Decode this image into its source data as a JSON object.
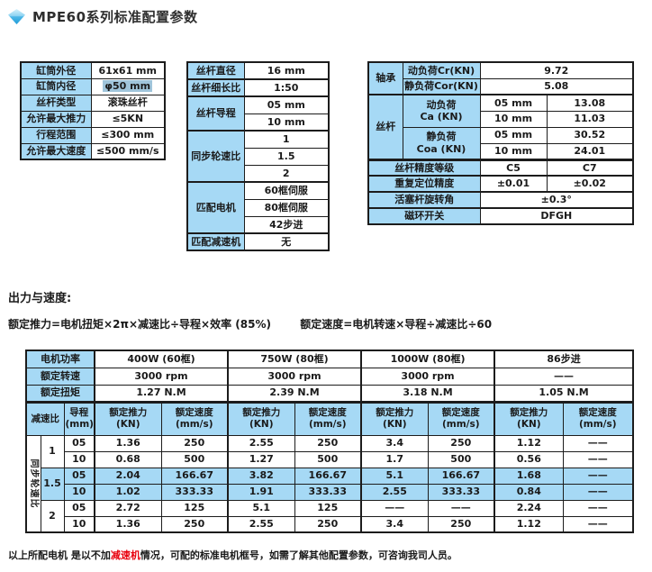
{
  "colors": {
    "header_blue": "#a6d9f5",
    "row_highlight": "#a6d9f5",
    "selection_highlight": "#a0c5db",
    "note_red": "#e8000d",
    "border": "#1c1c1c",
    "ink": "#1a1a1a",
    "diamond_top": "#cdeefb",
    "diamond_bottom": "#1f9cd8"
  },
  "header": {
    "title": "MPE60系列标准配置参数",
    "icon": "diamond-icon"
  },
  "cylinder_table": {
    "rows": [
      {
        "label": "缸筒外径",
        "value": "61x61 mm"
      },
      {
        "label": "缸筒内径",
        "value": "φ50 mm"
      },
      {
        "label": "丝杆类型",
        "value": "滚珠丝杆"
      },
      {
        "label": "允许最大推力",
        "value": "≤5KN"
      },
      {
        "label": "行程范围",
        "value": "≤300 mm"
      },
      {
        "label": "允许最大速度",
        "value": "≤500 mm/s"
      }
    ]
  },
  "screw_table": {
    "diameter_label": "丝杆直径",
    "diameter_value": "16 mm",
    "slenderness_label": "丝杆细长比",
    "slenderness_value": "1:50",
    "lead_label": "丝杆导程",
    "lead_values": [
      "05 mm",
      "10 mm"
    ],
    "ratio_label": "同步轮速比",
    "ratio_values": [
      "1",
      "1.5",
      "2"
    ],
    "motor_label": "匹配电机",
    "motor_values": [
      "60框伺服",
      "80框伺服",
      "42步进"
    ],
    "reducer_label": "匹配减速机",
    "reducer_value": "无"
  },
  "load_table": {
    "bearing_label": "轴承",
    "cr_label": "动负荷Cr(KN)",
    "cr_value": "9.72",
    "cor_label": "静负荷Cor(KN)",
    "cor_value": "5.08",
    "screw_label": "丝杆",
    "ca_label_l1": "动负荷",
    "ca_label_l2": "Ca (KN)",
    "ca_rows": [
      {
        "lead": "05 mm",
        "value": "13.08"
      },
      {
        "lead": "10 mm",
        "value": "11.03"
      }
    ],
    "coa_label_l1": "静负荷",
    "coa_label_l2": "Coa (KN)",
    "coa_rows": [
      {
        "lead": "05 mm",
        "value": "30.52"
      },
      {
        "lead": "10 mm",
        "value": "24.01"
      }
    ],
    "accuracy_label": "丝杆精度等级",
    "accuracy_values": [
      "C5",
      "C7"
    ],
    "repeat_label": "重复定位精度",
    "repeat_values": [
      "±0.01",
      "±0.02"
    ],
    "rotation_label": "活塞杆旋转角",
    "rotation_value": "±0.3°",
    "switch_label": "磁环开关",
    "switch_value": "DFGH"
  },
  "output_section": {
    "heading": "出力与速度:",
    "formula_thrust": "额定推力=电机扭矩×2π×减速比÷导程×效率 (85%)",
    "formula_speed": "额定速度=电机转速×导程÷减速比÷60"
  },
  "performance_table": {
    "power_label": "电机功率",
    "rated_speed_label": "额定转速",
    "rated_torque_label": "额定扭矩",
    "motors": [
      {
        "power": "400W (60框)",
        "rated_speed": "3000 rpm",
        "rated_torque": "1.27 N.M"
      },
      {
        "power": "750W (80框)",
        "rated_speed": "3000 rpm",
        "rated_torque": "2.39 N.M"
      },
      {
        "power": "1000W (80框)",
        "rated_speed": "3000 rpm",
        "rated_torque": "3.18 N.M"
      },
      {
        "power": "86步进",
        "rated_speed": "——",
        "rated_torque": "1.05 N.M"
      }
    ],
    "header": {
      "ratio": "减速比",
      "lead_l1": "导程",
      "lead_l2": "(mm)",
      "thrust_l1": "额定推力",
      "thrust_l2": "(KN)",
      "speed_l1": "额定速度",
      "speed_l2": "(mm/s)"
    },
    "side_label": "同步轮速比",
    "groups": [
      {
        "ratio": "1",
        "highlight": false,
        "rows": [
          {
            "lead": "05",
            "cells": [
              "1.36",
              "250",
              "2.55",
              "250",
              "3.4",
              "250",
              "1.12",
              "——"
            ]
          },
          {
            "lead": "10",
            "cells": [
              "0.68",
              "500",
              "1.27",
              "500",
              "1.7",
              "500",
              "0.56",
              "——"
            ]
          }
        ]
      },
      {
        "ratio": "1.5",
        "highlight": true,
        "rows": [
          {
            "lead": "05",
            "cells": [
              "2.04",
              "166.67",
              "3.82",
              "166.67",
              "5.1",
              "166.67",
              "1.68",
              "——"
            ]
          },
          {
            "lead": "10",
            "cells": [
              "1.02",
              "333.33",
              "1.91",
              "333.33",
              "2.55",
              "333.33",
              "0.84",
              "——"
            ]
          }
        ]
      },
      {
        "ratio": "2",
        "highlight": false,
        "rows": [
          {
            "lead": "05",
            "cells": [
              "2.72",
              "125",
              "5.1",
              "125",
              "——",
              "——",
              "2.24",
              "——"
            ]
          },
          {
            "lead": "10",
            "cells": [
              "1.36",
              "250",
              "2.55",
              "250",
              "3.4",
              "250",
              "1.12",
              "——"
            ]
          }
        ]
      }
    ]
  },
  "footnote": {
    "pre": "以上所配电机 是以不加",
    "highlight": "减速机",
    "post": "情况，可配的标准电机框号，如需了解其他配置参数，可咨询我司人员。"
  }
}
